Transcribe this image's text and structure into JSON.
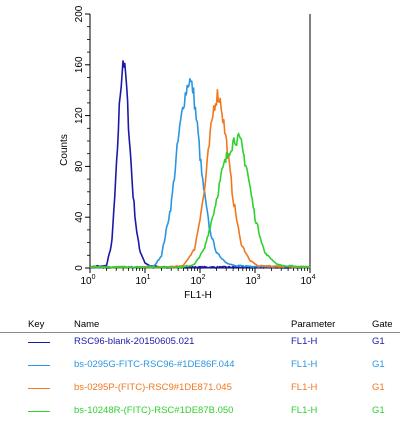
{
  "chart_data": {
    "type": "line",
    "title": "",
    "xlabel": "FL1-H",
    "ylabel": "Counts",
    "xscale": "log",
    "xlim": [
      1,
      10000
    ],
    "ylim": [
      0,
      200
    ],
    "x_tick_labels": [
      {
        "base": "10",
        "exp": "0"
      },
      {
        "base": "10",
        "exp": "1"
      },
      {
        "base": "10",
        "exp": "2"
      },
      {
        "base": "10",
        "exp": "3"
      },
      {
        "base": "10",
        "exp": "4"
      }
    ],
    "y_ticks": [
      0,
      40,
      80,
      120,
      160,
      200
    ],
    "y_tick_labels": [
      "0",
      "40",
      "80",
      "120",
      "160",
      "200"
    ],
    "series": [
      {
        "name": "RSC96-blank-20150605.021",
        "color": "#1a1aa8",
        "peak_x": 4,
        "peak_count": 165,
        "points": [
          [
            1,
            0
          ],
          [
            2,
            2
          ],
          [
            2.5,
            20
          ],
          [
            3,
            75
          ],
          [
            3.5,
            135
          ],
          [
            4,
            165
          ],
          [
            4.5,
            150
          ],
          [
            5,
            115
          ],
          [
            6,
            60
          ],
          [
            7,
            30
          ],
          [
            8,
            14
          ],
          [
            10,
            4
          ],
          [
            13,
            1
          ],
          [
            20,
            0
          ],
          [
            10000,
            0
          ]
        ]
      },
      {
        "name": "bs-0295G-FITC-RSC96-#1DE86F.044",
        "color": "#2a96e0",
        "peak_x": 65,
        "peak_count": 148,
        "points": [
          [
            1,
            0
          ],
          [
            10,
            0
          ],
          [
            15,
            2
          ],
          [
            20,
            10
          ],
          [
            30,
            50
          ],
          [
            40,
            100
          ],
          [
            50,
            130
          ],
          [
            60,
            145
          ],
          [
            65,
            148
          ],
          [
            75,
            140
          ],
          [
            90,
            110
          ],
          [
            110,
            70
          ],
          [
            150,
            30
          ],
          [
            200,
            12
          ],
          [
            300,
            4
          ],
          [
            500,
            1
          ],
          [
            10000,
            0
          ]
        ]
      },
      {
        "name": "bs-0295P-(FITC)-RSC9#1DE871.045",
        "color": "#f07820",
        "peak_x": 210,
        "peak_count": 137,
        "points": [
          [
            1,
            0
          ],
          [
            30,
            0
          ],
          [
            50,
            2
          ],
          [
            80,
            15
          ],
          [
            120,
            60
          ],
          [
            150,
            100
          ],
          [
            180,
            128
          ],
          [
            210,
            137
          ],
          [
            240,
            130
          ],
          [
            300,
            100
          ],
          [
            400,
            55
          ],
          [
            550,
            20
          ],
          [
            800,
            6
          ],
          [
            1200,
            1
          ],
          [
            10000,
            0
          ]
        ]
      },
      {
        "name": "bs-10248R-(FITC)-RSC#1DE87B.050",
        "color": "#30d030",
        "peak_x": 450,
        "peak_count": 103,
        "points": [
          [
            1,
            0
          ],
          [
            50,
            0
          ],
          [
            80,
            3
          ],
          [
            120,
            15
          ],
          [
            180,
            45
          ],
          [
            250,
            75
          ],
          [
            350,
            95
          ],
          [
            450,
            103
          ],
          [
            550,
            98
          ],
          [
            700,
            80
          ],
          [
            1000,
            40
          ],
          [
            1500,
            12
          ],
          [
            2500,
            3
          ],
          [
            4000,
            1
          ],
          [
            10000,
            0
          ]
        ]
      }
    ]
  },
  "legend": {
    "headers": {
      "key": "Key",
      "name": "Name",
      "parameter": "Parameter",
      "gate": "Gate"
    },
    "rows": [
      {
        "name": "RSC96-blank-20150605.021",
        "parameter": "FL1-H",
        "gate": "G1",
        "color": "#1a1aa8"
      },
      {
        "name": "bs-0295G-FITC-RSC96-#1DE86F.044",
        "parameter": "FL1-H",
        "gate": "G1",
        "color": "#2a96e0"
      },
      {
        "name": "bs-0295P-(FITC)-RSC9#1DE871.045",
        "parameter": "FL1-H",
        "gate": "G1",
        "color": "#f07820"
      },
      {
        "name": "bs-10248R-(FITC)-RSC#1DE87B.050",
        "parameter": "FL1-H",
        "gate": "G1",
        "color": "#30d030"
      }
    ]
  }
}
